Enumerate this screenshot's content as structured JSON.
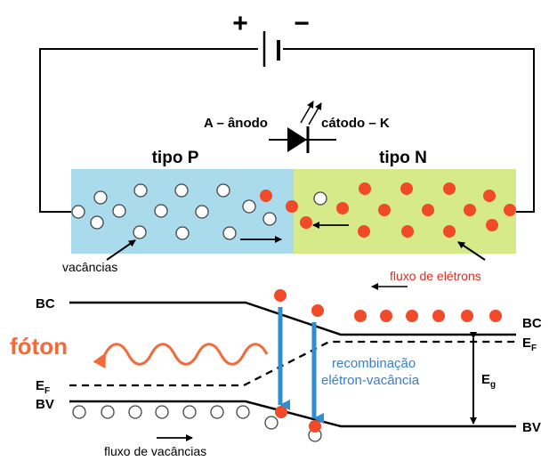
{
  "battery": {
    "plus": "+",
    "minus": "−"
  },
  "diode": {
    "anode": "A – ânodo",
    "cathode": "cátodo – K"
  },
  "regions": {
    "p_type": "tipo P",
    "n_type": "tipo N"
  },
  "labels": {
    "vacancies": "vacâncias",
    "electron_flow": "fluxo de elétrons",
    "hole_flow": "fluxo de vacâncias",
    "photon": "fóton",
    "recomb_1": "recombinação",
    "recomb_2": "elétron-vacância"
  },
  "bands": {
    "bc_left": "BC",
    "bc_right": "BC",
    "bv_left": "BV",
    "bv_right": "BV",
    "ef_main": "E",
    "ef_sub": "F",
    "eg_main": "E",
    "eg_sub": "g"
  },
  "colors": {
    "p_region": "#a9dbec",
    "n_region": "#d6ea8a",
    "electron": "#f04a28",
    "arrow_blue": "#2f8ed0",
    "photon": "#f26a3a",
    "recomb_text": "#3a7fc6",
    "flux_text": "#e32b1e"
  }
}
